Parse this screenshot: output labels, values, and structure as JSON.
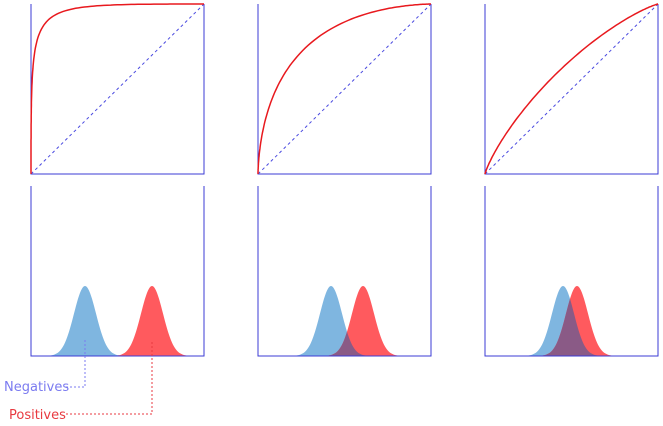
{
  "colors": {
    "axis": "#3b3bd6",
    "roc_curve": "#e8191e",
    "diagonal": "#4a4ae0",
    "negatives_fill": "#7fb6e0",
    "positives_fill": "#ff5a5e",
    "overlap_fill": "#8a5a86",
    "negatives_text": "#7b7bf0",
    "positives_text": "#e83a40"
  },
  "legend": {
    "negatives": "Negatives",
    "positives": "Positives"
  },
  "panels": [
    {
      "separation": "large",
      "roc_shape": "strongly bowed toward top-left"
    },
    {
      "separation": "medium",
      "roc_shape": "moderately bowed"
    },
    {
      "separation": "small",
      "roc_shape": "close to diagonal"
    }
  ]
}
